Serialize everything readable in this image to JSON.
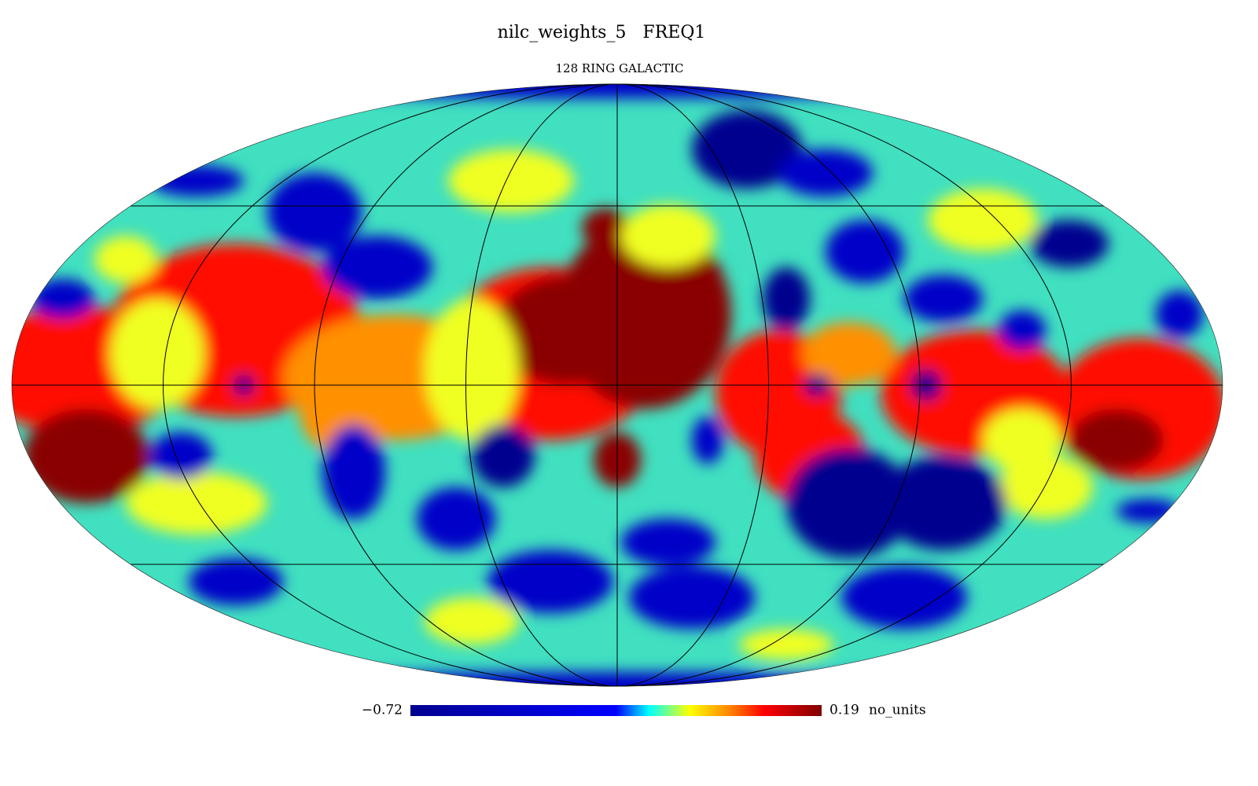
{
  "header": {
    "title": "nilc_weights_5   FREQ1",
    "subtitle": "128 RING GALACTIC"
  },
  "colorbar": {
    "min": {
      "value": -0.72,
      "label": "−0.72"
    },
    "max": {
      "value": 0.19,
      "label": "0.19"
    },
    "unit": "no_units"
  }
}
